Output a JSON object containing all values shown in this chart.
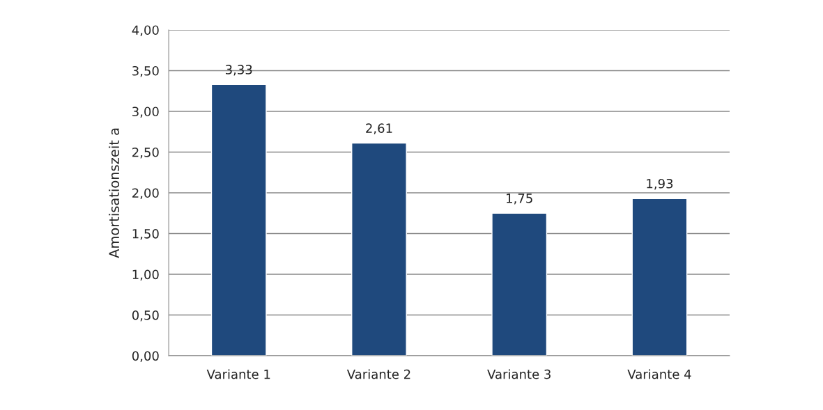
{
  "chart_data": {
    "type": "bar",
    "ylabel": "Amortisationszeit a",
    "categories": [
      "Variante 1",
      "Variante 2",
      "Variante 3",
      "Variante 4"
    ],
    "values": [
      3.33,
      2.61,
      1.75,
      1.93
    ],
    "value_labels": [
      "3,33",
      "2,61",
      "1,75",
      "1,93"
    ],
    "color": "#1f497d",
    "ylim": [
      0,
      4
    ],
    "yticks": [
      {
        "value": 0,
        "label": "0,00"
      },
      {
        "value": 0.5,
        "label": "0,50"
      },
      {
        "value": 1,
        "label": "1,00"
      },
      {
        "value": 1.5,
        "label": "1,50"
      },
      {
        "value": 2,
        "label": "2,00"
      },
      {
        "value": 2.5,
        "label": "2,50"
      },
      {
        "value": 3,
        "label": "3,00"
      },
      {
        "value": 3.5,
        "label": "3,50"
      },
      {
        "value": 4,
        "label": "4,00"
      }
    ],
    "grid": "y",
    "legend": false
  }
}
